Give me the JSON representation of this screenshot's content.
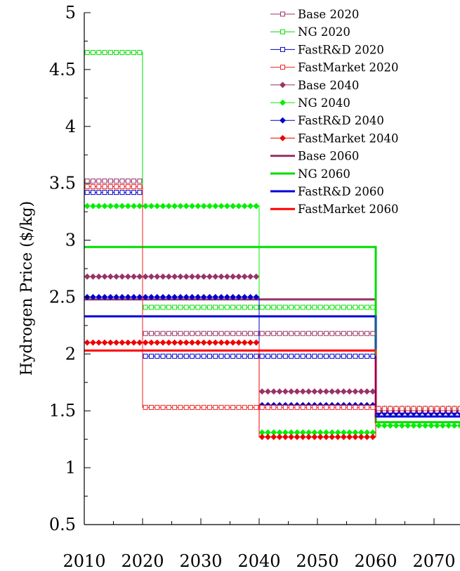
{
  "chart_data": {
    "type": "line",
    "title": "",
    "xlabel": "",
    "ylabel": "Hydrogen Price ($/kg)",
    "xlim": [
      2010,
      2075
    ],
    "ylim": [
      0.5,
      5
    ],
    "x_ticks": [
      2010,
      2020,
      2030,
      2040,
      2050,
      2060,
      2070
    ],
    "x_tick_labels": [
      "2010",
      "2020",
      "2030",
      "2040",
      "2050",
      "2060",
      "2070"
    ],
    "y_ticks": [
      0.5,
      1,
      1.5,
      2,
      2.5,
      3,
      3.5,
      4,
      4.5,
      5
    ],
    "y_tick_labels": [
      "0.5",
      "1",
      "1.5",
      "2",
      "2.5",
      "3",
      "3.5",
      "4",
      "4.5",
      "5"
    ],
    "grid": false,
    "legend_position": "top-right",
    "series": [
      {
        "name": "Base 2020",
        "color": "#993366",
        "marker": "square",
        "lw": 1,
        "segments": [
          [
            2010,
            2020,
            3.52
          ],
          [
            2020,
            2060,
            2.18
          ],
          [
            2060,
            2075,
            1.52
          ]
        ]
      },
      {
        "name": "NG 2020",
        "color": "#00dd00",
        "marker": "square",
        "lw": 1,
        "segments": [
          [
            2010,
            2020,
            4.65
          ],
          [
            2020,
            2060,
            2.41
          ],
          [
            2060,
            2075,
            1.52
          ]
        ]
      },
      {
        "name": "FastR&D 2020",
        "color": "#0000cc",
        "marker": "square",
        "lw": 1,
        "segments": [
          [
            2010,
            2020,
            3.42
          ],
          [
            2020,
            2060,
            1.98
          ],
          [
            2060,
            2075,
            1.5
          ]
        ]
      },
      {
        "name": "FastMarket 2020",
        "color": "#ee2222",
        "marker": "square",
        "lw": 1,
        "segments": [
          [
            2010,
            2020,
            3.47
          ],
          [
            2020,
            2060,
            1.53
          ],
          [
            2060,
            2075,
            1.52
          ]
        ]
      },
      {
        "name": "Base 2040",
        "color": "#993366",
        "marker": "diamond",
        "lw": 1,
        "segments": [
          [
            2010,
            2040,
            2.68
          ],
          [
            2040,
            2060,
            1.67
          ],
          [
            2060,
            2075,
            1.52
          ]
        ]
      },
      {
        "name": "NG 2040",
        "color": "#00ee00",
        "marker": "diamond",
        "lw": 1,
        "segments": [
          [
            2010,
            2040,
            3.3
          ],
          [
            2040,
            2060,
            1.31
          ],
          [
            2060,
            2075,
            1.37
          ]
        ]
      },
      {
        "name": "FastR&D 2040",
        "color": "#0000cc",
        "marker": "diamond",
        "lw": 1,
        "segments": [
          [
            2010,
            2040,
            2.5
          ],
          [
            2040,
            2060,
            1.55
          ],
          [
            2060,
            2075,
            1.48
          ]
        ]
      },
      {
        "name": "FastMarket 2040",
        "color": "#ee0000",
        "marker": "diamond",
        "lw": 1,
        "segments": [
          [
            2010,
            2040,
            2.1
          ],
          [
            2040,
            2060,
            1.27
          ],
          [
            2060,
            2075,
            1.5
          ]
        ]
      },
      {
        "name": "Base 2060",
        "color": "#993366",
        "marker": "none",
        "lw": 3,
        "segments": [
          [
            2010,
            2060,
            2.48
          ],
          [
            2060,
            2075,
            1.5
          ]
        ]
      },
      {
        "name": "NG 2060",
        "color": "#00dd00",
        "marker": "none",
        "lw": 3,
        "segments": [
          [
            2010,
            2060,
            2.94
          ],
          [
            2060,
            2075,
            1.4
          ]
        ]
      },
      {
        "name": "FastR&D 2060",
        "color": "#0000dd",
        "marker": "none",
        "lw": 3,
        "segments": [
          [
            2010,
            2060,
            2.33
          ],
          [
            2060,
            2075,
            1.45
          ]
        ]
      },
      {
        "name": "FastMarket 2060",
        "color": "#ff0000",
        "marker": "none",
        "lw": 3,
        "segments": [
          [
            2010,
            2060,
            2.03
          ],
          [
            2060,
            2075,
            1.49
          ]
        ]
      }
    ]
  }
}
